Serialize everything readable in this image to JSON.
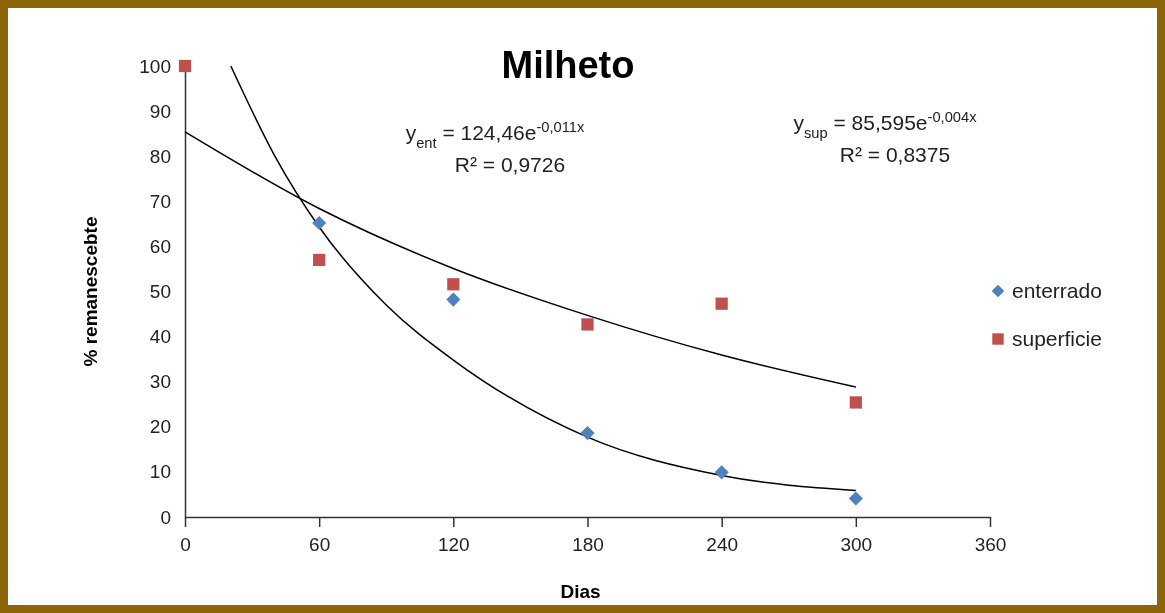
{
  "chart_data": {
    "type": "scatter",
    "title": "Milheto",
    "xlabel": "Dias",
    "ylabel": "% remanescebte",
    "x": [
      0,
      60,
      120,
      180,
      240,
      300
    ],
    "xlim": [
      0,
      360
    ],
    "xticks": [
      0,
      60,
      120,
      180,
      240,
      300,
      360
    ],
    "ylim": [
      0,
      100
    ],
    "yticks": [
      0,
      10,
      20,
      30,
      40,
      50,
      60,
      70,
      80,
      90,
      100
    ],
    "grid": false,
    "legend": "right",
    "series": [
      {
        "name": "enterrado",
        "marker": "diamond",
        "color": "#4f81bd",
        "values": [
          null,
          65.2,
          48.2,
          18.6,
          9.9,
          4.1
        ]
      },
      {
        "name": "superficie",
        "marker": "square",
        "color": "#c0504d",
        "values": [
          100,
          57.0,
          51.6,
          42.7,
          47.3,
          25.4
        ]
      },
      {
        "type": "line",
        "marker": "none",
        "color": "#000000",
        "x": [
          20.5,
          40,
          60,
          90,
          120,
          180,
          240,
          300
        ],
        "values": [
          100,
          80.2,
          64.3,
          47,
          34.8,
          17.7,
          9.2,
          5.9
        ]
      },
      {
        "type": "line",
        "marker": "none",
        "color": "#000000",
        "x": [
          0,
          60,
          120,
          180,
          240,
          300
        ],
        "values": [
          85.4,
          68.4,
          55.1,
          44.7,
          35.9,
          28.8
        ]
      }
    ],
    "annotations": [
      "y$_{ent}$ = 124,46e$^{-0,011x}$",
      "R² = 0,9726",
      "y$_{sup}$ = 85,595e$^{-0,004x}$",
      "R² = 0,8375"
    ]
  }
}
